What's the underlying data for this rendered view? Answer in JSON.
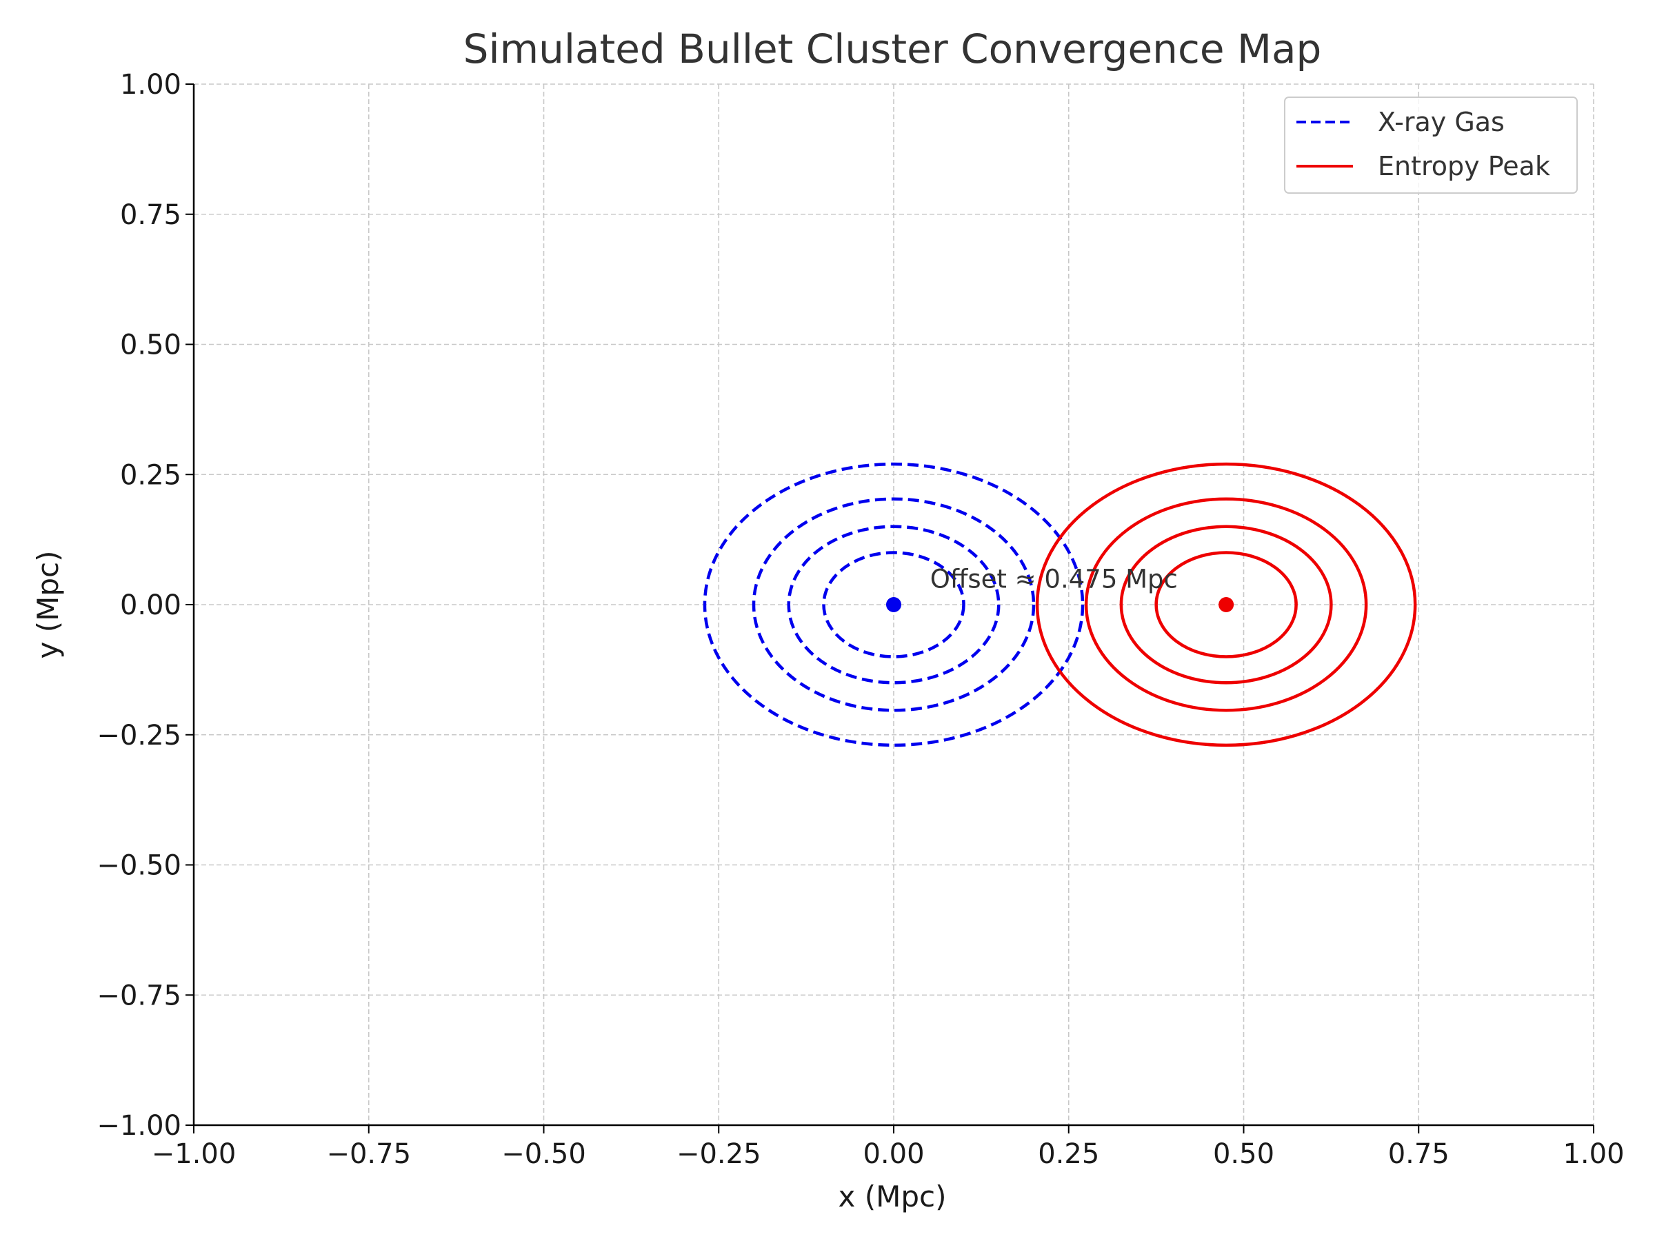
{
  "chart_data": {
    "type": "contour",
    "title": "Simulated Bullet Cluster Convergence Map",
    "xlabel": "x (Mpc)",
    "ylabel": "y (Mpc)",
    "xlim": [
      -1.0,
      1.0
    ],
    "ylim": [
      -1.0,
      1.0
    ],
    "xticks": [
      -1.0,
      -0.75,
      -0.5,
      -0.25,
      0.0,
      0.25,
      0.5,
      0.75,
      1.0
    ],
    "yticks": [
      -1.0,
      -0.75,
      -0.5,
      -0.25,
      0.0,
      0.25,
      0.5,
      0.75,
      1.0
    ],
    "xtick_labels": [
      "−1.00",
      "−0.75",
      "−0.50",
      "−0.25",
      "0.00",
      "0.25",
      "0.50",
      "0.75",
      "1.00"
    ],
    "ytick_labels": [
      "−1.00",
      "−0.75",
      "−0.50",
      "−0.25",
      "0.00",
      "0.25",
      "0.50",
      "0.75",
      "1.00"
    ],
    "grid": true,
    "legend_position": "top-right",
    "series": [
      {
        "name": "X-ray Gas",
        "color": "#0000ee",
        "style": "dashed",
        "center": [
          0.0,
          0.0
        ],
        "contours": [
          {
            "rx": 0.1,
            "ry": 0.1
          },
          {
            "rx": 0.15,
            "ry": 0.15
          },
          {
            "rx": 0.2,
            "ry": 0.203
          },
          {
            "rx": 0.27,
            "ry": 0.27
          }
        ]
      },
      {
        "name": "Entropy Peak",
        "color": "#ee0000",
        "style": "solid",
        "center": [
          0.475,
          0.0
        ],
        "contours": [
          {
            "rx": 0.1,
            "ry": 0.1
          },
          {
            "rx": 0.15,
            "ry": 0.15
          },
          {
            "rx": 0.2,
            "ry": 0.203
          },
          {
            "rx": 0.27,
            "ry": 0.27
          }
        ]
      }
    ],
    "annotation": {
      "text": "Offset ≈ 0.475 Mpc",
      "x": 0.05,
      "y": 0.05
    }
  }
}
